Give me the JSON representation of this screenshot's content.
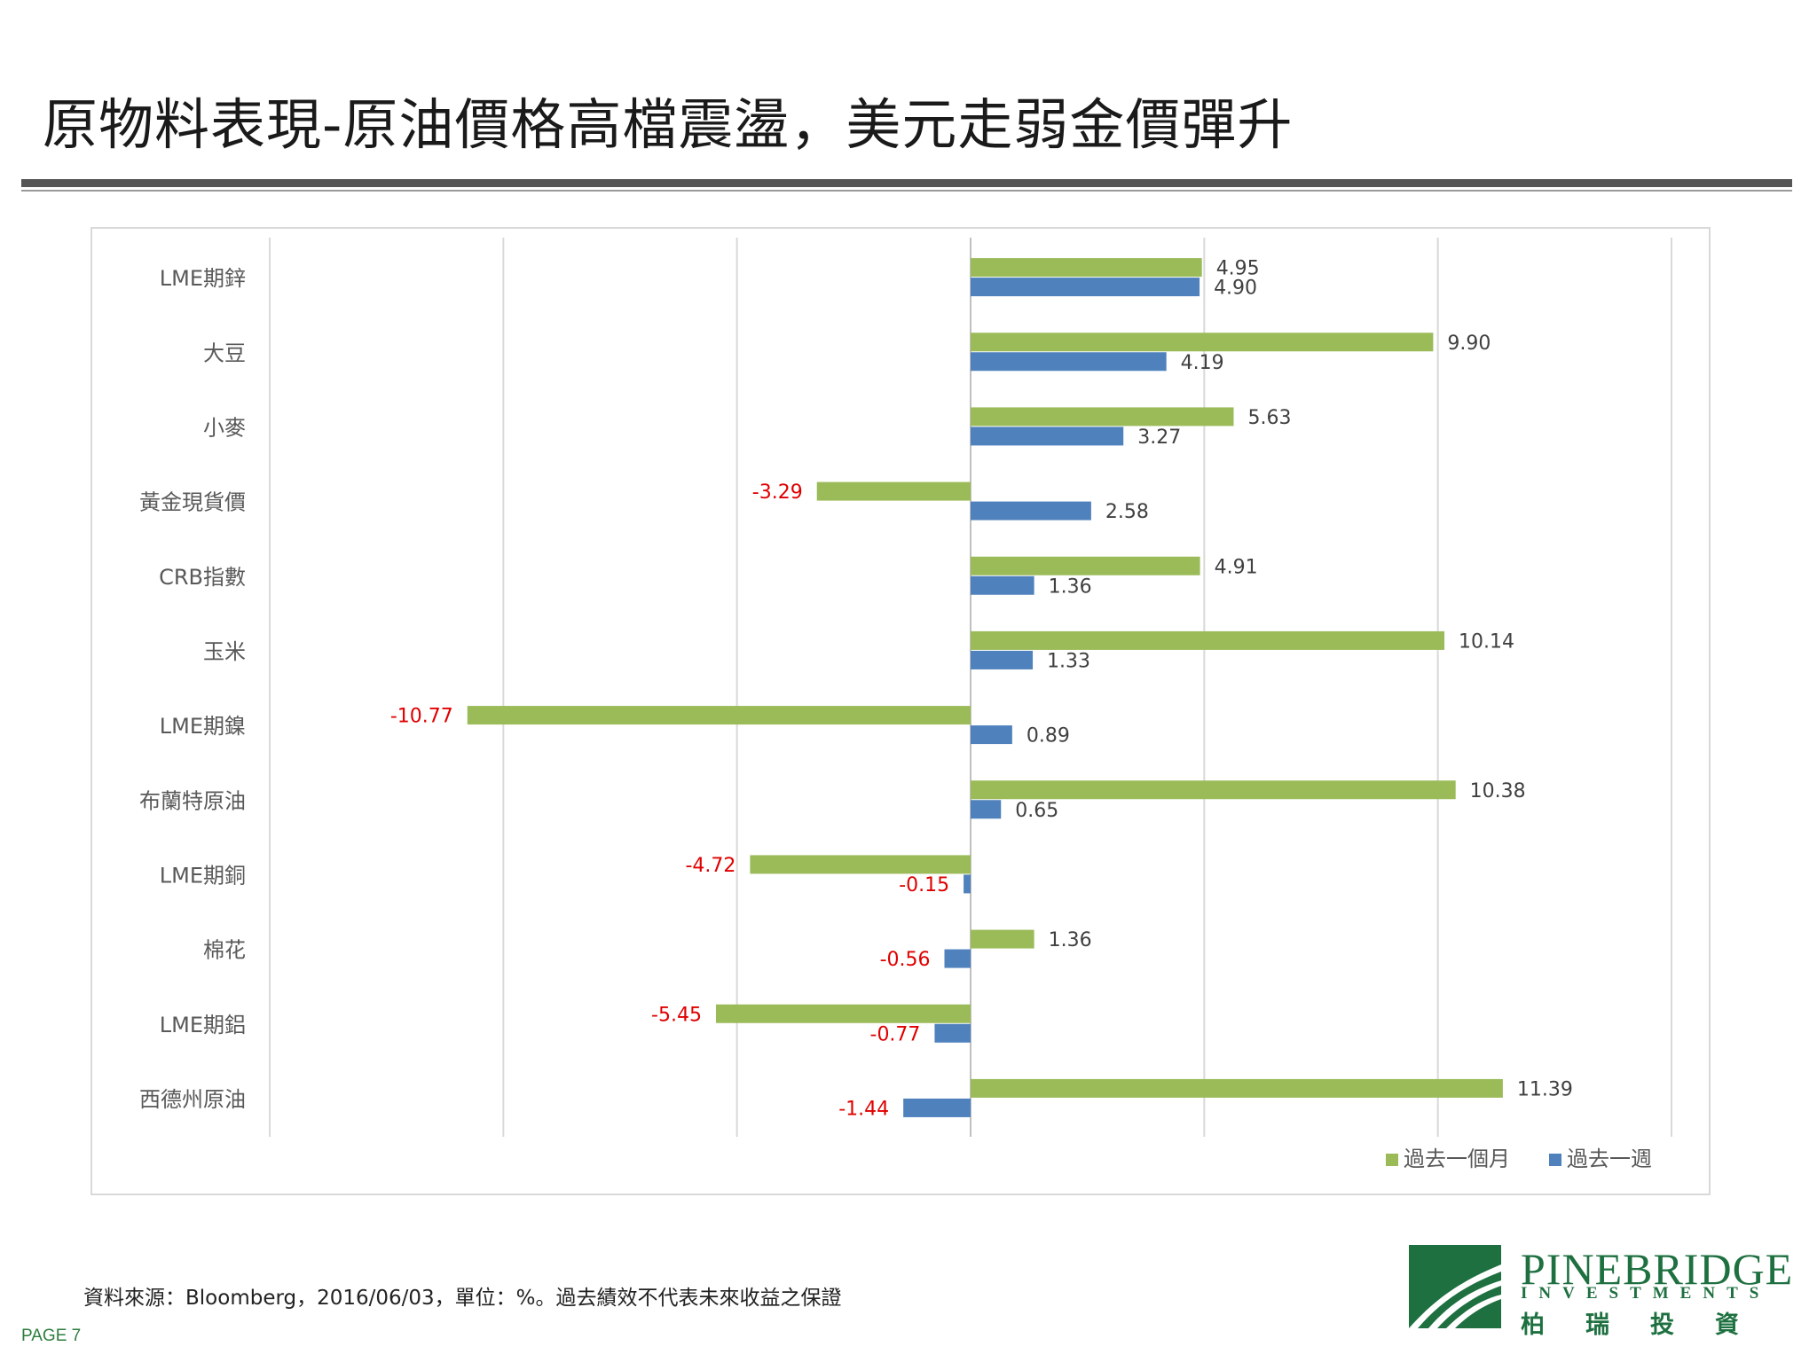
{
  "header": {
    "title": "原物料表現-原油價格高檔震盪，美元走弱金價彈升"
  },
  "chart_data": {
    "type": "bar",
    "orientation": "horizontal",
    "categories": [
      "LME期鋅",
      "大豆",
      "小麥",
      "黃金現貨價",
      "CRB指數",
      "玉米",
      "LME期鎳",
      "布蘭特原油",
      "LME期銅",
      "棉花",
      "LME期鋁",
      "西德州原油"
    ],
    "series": [
      {
        "name": "過去一個月",
        "color": "#9bbb59",
        "values": [
          4.95,
          9.9,
          5.63,
          -3.29,
          4.91,
          10.14,
          -10.77,
          10.38,
          -4.72,
          1.36,
          -5.45,
          11.39
        ],
        "labels": [
          "4.95",
          "9.90",
          "5.63",
          "-3.29",
          "4.91",
          "10.14",
          "-10.77",
          "10.38",
          "-4.72",
          "1.36",
          "-5.45",
          "11.39"
        ]
      },
      {
        "name": "過去一週",
        "color": "#4f81bd",
        "values": [
          4.9,
          4.19,
          3.27,
          2.58,
          1.36,
          1.33,
          0.89,
          0.65,
          -0.15,
          -0.56,
          -0.77,
          -1.44
        ],
        "labels": [
          "4.90",
          "4.19",
          "3.27",
          "2.58",
          "1.36",
          "1.33",
          "0.89",
          "0.65",
          "-0.15",
          "-0.56",
          "-0.77",
          "-1.44"
        ]
      }
    ],
    "xlim": [
      -15,
      15
    ],
    "grid": true,
    "legend_position": "bottom-right",
    "positive_label_color": "#404040",
    "negative_label_color": "#e00000"
  },
  "footer": {
    "source": "資料來源：Bloomberg，2016/06/03，單位：%。過去績效不代表未來收益之保證",
    "page": "PAGE 7"
  },
  "logo": {
    "name": "PINEBRIDGE",
    "sub": "INVESTMENTS",
    "cn": "柏瑞投資",
    "color": "#1e7040"
  }
}
